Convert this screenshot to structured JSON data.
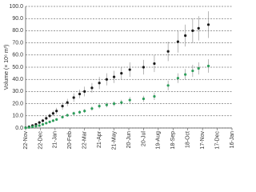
{
  "chart_data": {
    "type": "scatter",
    "y_label": "Volume (× 10⁶ m³)",
    "x": [
      0,
      7,
      14,
      21,
      28,
      35,
      42,
      49,
      56,
      63,
      75,
      85,
      98,
      110,
      120,
      135,
      150,
      165,
      180,
      195,
      212,
      240,
      262,
      290,
      310,
      325,
      340,
      352,
      372
    ],
    "series": [
      {
        "color": "#1a1a1a",
        "values": [
          0.3,
          1,
          2,
          3,
          4.5,
          6,
          8,
          10,
          12,
          14,
          18,
          21,
          25,
          28,
          30,
          33,
          37,
          40,
          42,
          45,
          48,
          50,
          53,
          63,
          71,
          76,
          80,
          82,
          85
        ],
        "errors": [
          0.3,
          0.5,
          0.8,
          1,
          1.2,
          1.5,
          1.8,
          2,
          2.2,
          2.5,
          3,
          3,
          3.5,
          3.5,
          4,
          4,
          5,
          5,
          5,
          5,
          6,
          6,
          7,
          8,
          9,
          9,
          10,
          10,
          11
        ]
      },
      {
        "color": "#2e9e5b",
        "values": [
          0.2,
          0.5,
          1,
          1.5,
          2,
          3,
          4,
          5,
          6,
          7,
          9,
          10.5,
          12,
          13,
          14,
          16,
          18,
          19,
          20,
          21,
          23,
          24,
          26,
          35,
          41,
          44,
          47,
          49,
          51
        ],
        "errors": [
          0.2,
          0.3,
          0.4,
          0.5,
          0.6,
          0.7,
          0.8,
          0.9,
          1,
          1,
          1.2,
          1.3,
          1.5,
          1.5,
          1.6,
          1.8,
          2,
          2,
          2,
          2.2,
          2.5,
          2.5,
          3,
          4,
          4,
          4.5,
          5,
          5,
          5.5
        ]
      }
    ],
    "xlim": [
      0,
      420
    ],
    "xticks": [
      {
        "value": 0,
        "label": "22-Nov"
      },
      {
        "value": 30,
        "label": "22-Dec"
      },
      {
        "value": 60,
        "label": "21-Jan"
      },
      {
        "value": 90,
        "label": "20-Feb"
      },
      {
        "value": 120,
        "label": "22-Mar"
      },
      {
        "value": 150,
        "label": "21-Apr"
      },
      {
        "value": 180,
        "label": "21-May"
      },
      {
        "value": 210,
        "label": "20-Jun"
      },
      {
        "value": 240,
        "label": "20-Jul"
      },
      {
        "value": 270,
        "label": "19-Aug"
      },
      {
        "value": 300,
        "label": "18-Sep"
      },
      {
        "value": 330,
        "label": "18-Oct"
      },
      {
        "value": 360,
        "label": "17-Nov"
      },
      {
        "value": 390,
        "label": "17-Dec"
      },
      {
        "value": 420,
        "label": "16-Jan"
      }
    ],
    "ylim": [
      0,
      100
    ],
    "yticks": [
      {
        "value": 0,
        "label": "0.0"
      },
      {
        "value": 10,
        "label": "10.0"
      },
      {
        "value": 20,
        "label": "20.0"
      },
      {
        "value": 30,
        "label": "30.0"
      },
      {
        "value": 40,
        "label": "40.0"
      },
      {
        "value": 50,
        "label": "50.0"
      },
      {
        "value": 60,
        "label": "60.0"
      },
      {
        "value": 70,
        "label": "70.0"
      },
      {
        "value": 80,
        "label": "80.0"
      },
      {
        "value": 90,
        "label": "90.0"
      },
      {
        "value": 100,
        "label": "100.0"
      }
    ],
    "grid": true
  }
}
